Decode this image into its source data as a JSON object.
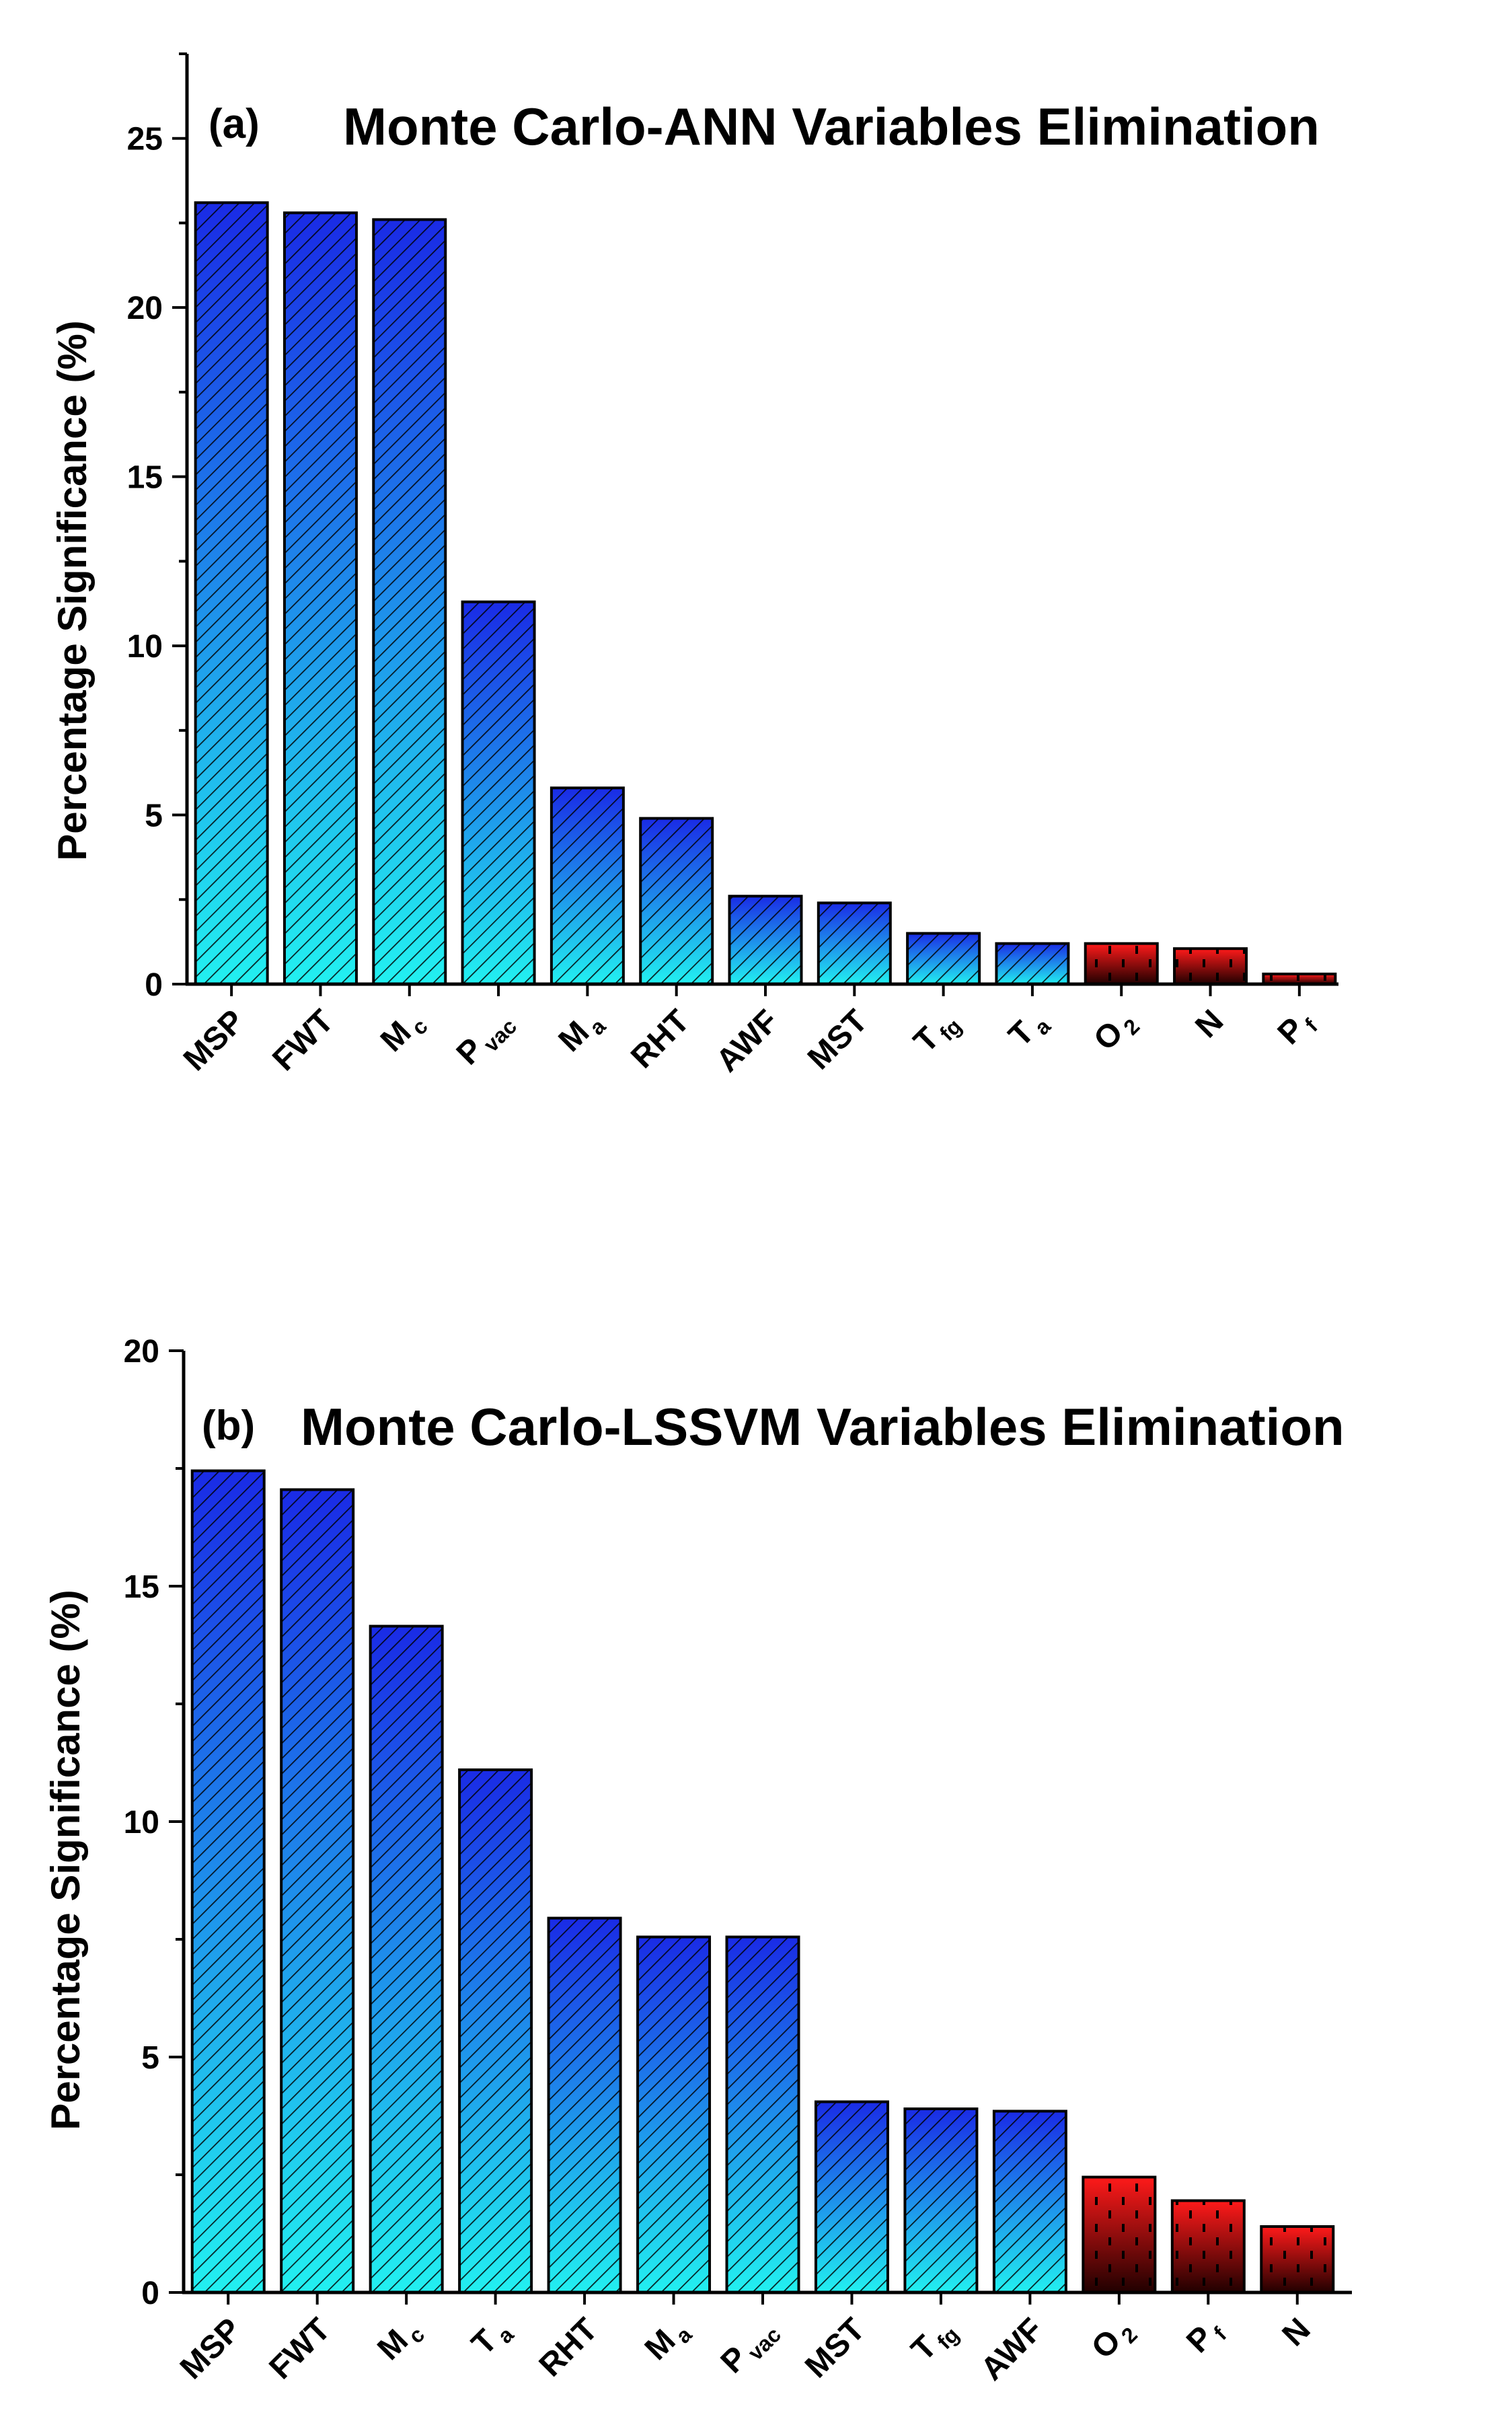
{
  "chart_data": [
    {
      "type": "bar",
      "panel_label": "(a)",
      "title": "Monte Carlo-ANN Variables Elimination",
      "ylabel": "Percentage Significance (%)",
      "xlabel": "",
      "ylim": [
        0,
        27.5
      ],
      "yticks": [
        0,
        5,
        10,
        15,
        20,
        25
      ],
      "categories": [
        {
          "main": "MSP",
          "sub": ""
        },
        {
          "main": "FWT",
          "sub": ""
        },
        {
          "main": "M",
          "sub": "c"
        },
        {
          "main": "P",
          "sub": "vac"
        },
        {
          "main": "M",
          "sub": "a"
        },
        {
          "main": "RHT",
          "sub": ""
        },
        {
          "main": "AWF",
          "sub": ""
        },
        {
          "main": "MST",
          "sub": ""
        },
        {
          "main": "T",
          "sub": "fg"
        },
        {
          "main": "T",
          "sub": "a"
        },
        {
          "main": "O",
          "sub": "2"
        },
        {
          "main": "N",
          "sub": ""
        },
        {
          "main": "P",
          "sub": "f"
        }
      ],
      "values": [
        23.1,
        22.8,
        22.6,
        11.3,
        5.8,
        4.9,
        2.6,
        2.4,
        1.5,
        1.2,
        1.2,
        1.05,
        0.3
      ],
      "groups": [
        "retained",
        "retained",
        "retained",
        "retained",
        "retained",
        "retained",
        "retained",
        "retained",
        "retained",
        "retained",
        "eliminated",
        "eliminated",
        "eliminated"
      ],
      "grid": false,
      "legend": "none"
    },
    {
      "type": "bar",
      "panel_label": "(b)",
      "title": "Monte Carlo-LSSVM Variables Elimination",
      "ylabel": "Percentage Significance (%)",
      "xlabel": "",
      "ylim": [
        0,
        20
      ],
      "yticks": [
        0,
        5,
        10,
        15,
        20
      ],
      "categories": [
        {
          "main": "MSP",
          "sub": ""
        },
        {
          "main": "FWT",
          "sub": ""
        },
        {
          "main": "M",
          "sub": "c"
        },
        {
          "main": "T",
          "sub": "a"
        },
        {
          "main": "RHT",
          "sub": ""
        },
        {
          "main": "M",
          "sub": "a"
        },
        {
          "main": "P",
          "sub": "vac"
        },
        {
          "main": "MST",
          "sub": ""
        },
        {
          "main": "T",
          "sub": "fg"
        },
        {
          "main": "AWF",
          "sub": ""
        },
        {
          "main": "O",
          "sub": "2"
        },
        {
          "main": "P",
          "sub": "f"
        },
        {
          "main": "N",
          "sub": ""
        }
      ],
      "values": [
        17.45,
        17.05,
        14.15,
        11.1,
        7.95,
        7.55,
        7.55,
        4.05,
        3.9,
        3.85,
        2.45,
        1.95,
        1.4
      ],
      "groups": [
        "retained",
        "retained",
        "retained",
        "retained",
        "retained",
        "retained",
        "retained",
        "retained",
        "retained",
        "retained",
        "eliminated",
        "eliminated",
        "eliminated"
      ],
      "grid": false,
      "legend": "none"
    }
  ],
  "colors": {
    "retained_top": "#1a2be6",
    "retained_bottom": "#22f0f0",
    "eliminated_top": "#ff1a1a",
    "eliminated_bottom": "#200000",
    "axis": "#000000"
  }
}
